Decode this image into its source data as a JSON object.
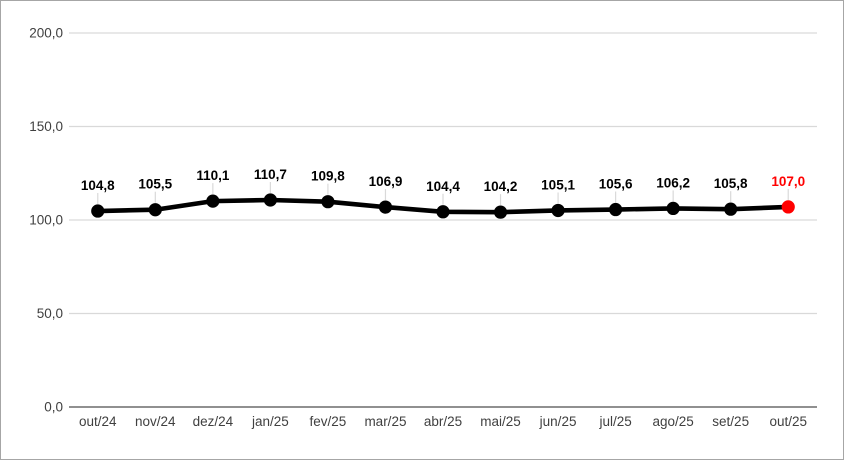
{
  "chart_data": {
    "type": "line",
    "title": "",
    "xlabel": "",
    "ylabel": "",
    "categories": [
      "out/24",
      "nov/24",
      "dez/24",
      "jan/25",
      "fev/25",
      "mar/25",
      "abr/25",
      "mai/25",
      "jun/25",
      "jul/25",
      "ago/25",
      "set/25",
      "out/25"
    ],
    "values": [
      104.8,
      105.5,
      110.1,
      110.7,
      109.8,
      106.9,
      104.4,
      104.2,
      105.1,
      105.6,
      106.2,
      105.8,
      107.0
    ],
    "value_labels": [
      "104,8",
      "105,5",
      "110,1",
      "110,7",
      "109,8",
      "106,9",
      "104,4",
      "104,2",
      "105,1",
      "105,6",
      "106,2",
      "105,8",
      "107,0"
    ],
    "highlight_index": 12,
    "y_ticks": [
      {
        "value": 200,
        "label": "200,0"
      },
      {
        "value": 150,
        "label": "150,0"
      },
      {
        "value": 100,
        "label": "100,0"
      },
      {
        "value": 50,
        "label": "50,0"
      },
      {
        "value": 0,
        "label": "0,0"
      }
    ],
    "ylim": [
      0,
      200
    ],
    "grid": true,
    "legend_position": "none",
    "colors": {
      "line": "#000000",
      "marker": "#000000",
      "highlight": "#ff0000",
      "grid": "#d9d9d9",
      "axis": "#808080",
      "tick_text": "#404040",
      "label_text": "#000000",
      "leader": "#d9d9d9",
      "border": "#a6a6a6",
      "background": "#ffffff"
    }
  }
}
